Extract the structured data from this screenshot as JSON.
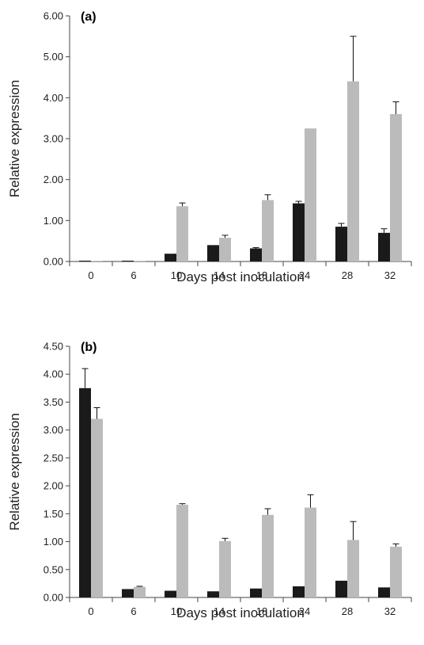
{
  "chart_data": [
    {
      "type": "bar",
      "panel_label": "(a)",
      "xlabel": "Days post inoculation",
      "ylabel": "Relative expression",
      "ylim": [
        0,
        6
      ],
      "yticks": [
        "0.00",
        "1.00",
        "2.00",
        "3.00",
        "4.00",
        "5.00",
        "6.00"
      ],
      "categories": [
        "0",
        "6",
        "10",
        "14",
        "18",
        "24",
        "28",
        "32"
      ],
      "grid": false,
      "series": [
        {
          "color": "#1a1a1a",
          "values": [
            0.02,
            0.02,
            0.19,
            0.4,
            0.32,
            1.42,
            0.85,
            0.7
          ],
          "errors": [
            0.0,
            0.0,
            0.0,
            0.0,
            0.02,
            0.05,
            0.08,
            0.1
          ]
        },
        {
          "color": "#bbbbbb",
          "values": [
            0.01,
            0.01,
            1.35,
            0.58,
            1.5,
            3.25,
            4.4,
            3.6
          ],
          "errors": [
            0.0,
            0.0,
            0.08,
            0.06,
            0.13,
            0.0,
            1.1,
            0.3
          ]
        }
      ]
    },
    {
      "type": "bar",
      "panel_label": "(b)",
      "xlabel": "Days post inoculation",
      "ylabel": "Relative expression",
      "ylim": [
        0,
        4.5
      ],
      "yticks": [
        "0.00",
        "0.50",
        "1.00",
        "1.50",
        "2.00",
        "2.50",
        "3.00",
        "3.50",
        "4.00",
        "4.50"
      ],
      "categories": [
        "0",
        "6",
        "10",
        "14",
        "18",
        "24",
        "28",
        "32"
      ],
      "grid": false,
      "series": [
        {
          "color": "#1a1a1a",
          "values": [
            3.75,
            0.15,
            0.12,
            0.11,
            0.16,
            0.2,
            0.3,
            0.18
          ],
          "errors": [
            0.35,
            0.0,
            0.0,
            0.0,
            0.0,
            0.0,
            0.0,
            0.0
          ]
        },
        {
          "color": "#bbbbbb",
          "values": [
            3.2,
            0.19,
            1.66,
            1.01,
            1.48,
            1.61,
            1.03,
            0.91
          ],
          "errors": [
            0.2,
            0.01,
            0.02,
            0.05,
            0.11,
            0.23,
            0.33,
            0.05
          ]
        }
      ]
    }
  ]
}
